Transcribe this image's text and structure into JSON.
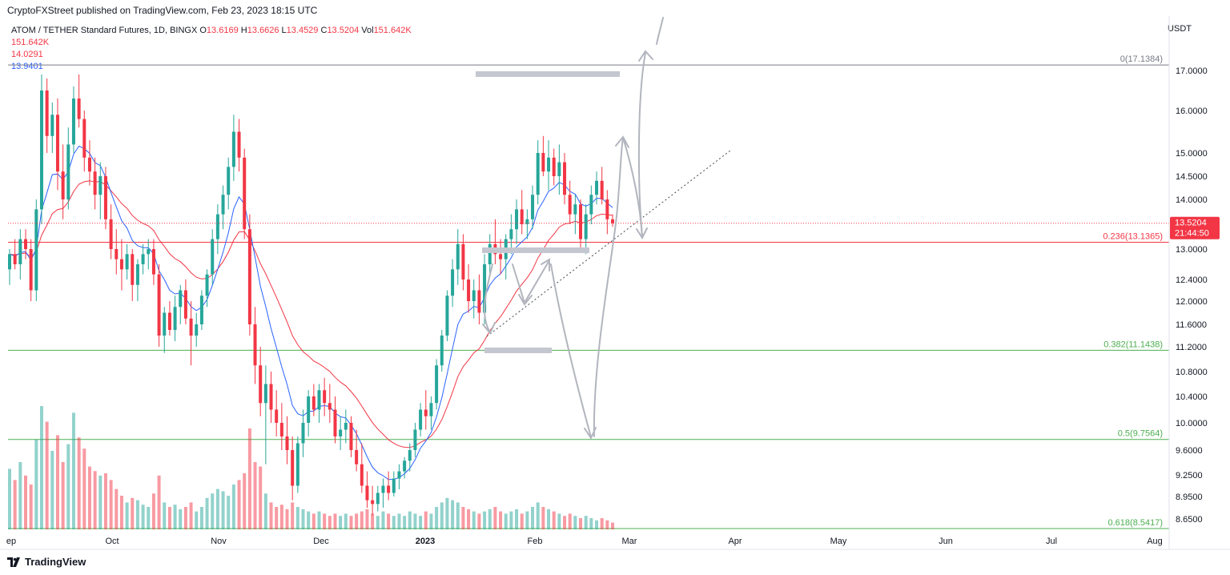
{
  "header": {
    "publisher": "CryptoFXStreet published on TradingView.com, Feb 23, 2023 18:15 UTC"
  },
  "legend": {
    "symbol": "ATOM / TETHER Standard Futures, 1D, BINGX",
    "o_label": "O",
    "o_value": "13.6169",
    "h_label": "H",
    "h_value": "13.6626",
    "l_label": "L",
    "l_value": "13.4529",
    "c_label": "C",
    "c_value": "13.5204",
    "vol_label": "Vol",
    "vol_value": "151.642K",
    "line1": "151.642K",
    "line2": "14.0291",
    "line3": "13.9401"
  },
  "unit": "USDT",
  "footer": {
    "brand": "TradingView"
  },
  "colors": {
    "up": "#26a69a",
    "down": "#f23645",
    "ema_fast": "#2962ff",
    "ema_slow": "#f23645",
    "fib_red": "#f23645",
    "fib_green": "#4caf50",
    "grey_line": "#787b86"
  },
  "chart_data": {
    "type": "candlestick",
    "ylim": [
      8.5,
      17.3
    ],
    "y_ticks": [
      "17.0000",
      "16.0000",
      "15.0000",
      "14.5000",
      "14.0000",
      "13.0000",
      "12.4000",
      "12.0000",
      "11.6000",
      "11.2000",
      "10.8000",
      "10.4000",
      "10.0000",
      "9.6000",
      "9.2500",
      "8.9500",
      "8.6500"
    ],
    "x_labels": [
      "ep",
      "Oct",
      "Nov",
      "Dec",
      "2023",
      "Feb",
      "Mar",
      "Apr",
      "May",
      "Jun",
      "Jul",
      "Aug"
    ],
    "last_price": {
      "value": 13.5204,
      "label": "13.5204",
      "countdown": "21:44:50"
    },
    "fib_levels": [
      {
        "label": "0(17.1384)",
        "value": 17.1384,
        "color": "#787b86"
      },
      {
        "label": "0.236(13.1365)",
        "value": 13.1365,
        "color": "#f23645"
      },
      {
        "label": "0.382(11.1438)",
        "value": 11.1438,
        "color": "#4caf50"
      },
      {
        "label": "0.5(9.7564)",
        "value": 9.7564,
        "color": "#4caf50"
      },
      {
        "label": "0.618(8.5417)",
        "value": 8.5417,
        "color": "#4caf50"
      }
    ],
    "candles": [
      [
        12.6,
        13.0,
        12.3,
        12.9
      ],
      [
        12.9,
        13.2,
        12.6,
        12.7
      ],
      [
        12.7,
        13.4,
        12.4,
        13.2
      ],
      [
        13.2,
        13.4,
        12.8,
        13.0
      ],
      [
        13.0,
        13.2,
        12.0,
        12.2
      ],
      [
        12.2,
        14.0,
        12.0,
        13.8
      ],
      [
        13.8,
        16.9,
        13.5,
        16.5
      ],
      [
        16.5,
        16.8,
        15.0,
        15.4
      ],
      [
        15.4,
        16.2,
        15.0,
        15.9
      ],
      [
        15.9,
        16.3,
        14.2,
        14.6
      ],
      [
        14.6,
        15.2,
        13.6,
        14.0
      ],
      [
        14.0,
        15.6,
        13.8,
        15.2
      ],
      [
        15.2,
        16.6,
        15.0,
        16.3
      ],
      [
        16.3,
        16.9,
        15.6,
        15.8
      ],
      [
        15.8,
        16.0,
        14.6,
        14.9
      ],
      [
        14.9,
        15.3,
        14.3,
        14.6
      ],
      [
        14.6,
        14.9,
        13.8,
        14.1
      ],
      [
        14.1,
        14.8,
        13.6,
        14.5
      ],
      [
        14.5,
        14.7,
        13.4,
        13.6
      ],
      [
        13.6,
        13.9,
        12.8,
        13.0
      ],
      [
        13.0,
        13.4,
        12.5,
        12.8
      ],
      [
        12.8,
        13.2,
        12.2,
        12.6
      ],
      [
        12.6,
        13.1,
        12.4,
        12.9
      ],
      [
        12.9,
        13.0,
        12.0,
        12.3
      ],
      [
        12.3,
        12.8,
        12.0,
        12.7
      ],
      [
        12.7,
        13.1,
        12.5,
        12.9
      ],
      [
        12.9,
        13.2,
        12.6,
        13.0
      ],
      [
        13.0,
        13.2,
        12.3,
        12.5
      ],
      [
        12.5,
        12.7,
        11.2,
        11.4
      ],
      [
        11.4,
        11.9,
        11.1,
        11.8
      ],
      [
        11.8,
        12.0,
        11.4,
        11.5
      ],
      [
        11.5,
        12.1,
        11.3,
        11.9
      ],
      [
        11.9,
        12.3,
        11.6,
        12.2
      ],
      [
        12.2,
        12.4,
        11.6,
        11.7
      ],
      [
        11.7,
        12.0,
        10.9,
        11.4
      ],
      [
        11.4,
        11.8,
        11.2,
        11.6
      ],
      [
        11.6,
        12.2,
        11.5,
        12.1
      ],
      [
        12.1,
        12.6,
        11.9,
        12.5
      ],
      [
        12.5,
        13.4,
        12.3,
        13.2
      ],
      [
        13.2,
        13.9,
        12.9,
        13.7
      ],
      [
        13.7,
        14.3,
        13.4,
        14.1
      ],
      [
        14.1,
        14.9,
        13.8,
        14.7
      ],
      [
        14.7,
        15.9,
        14.4,
        15.5
      ],
      [
        15.5,
        15.8,
        14.6,
        14.9
      ],
      [
        14.9,
        15.1,
        13.2,
        13.4
      ],
      [
        13.4,
        13.7,
        11.4,
        11.6
      ],
      [
        11.6,
        11.9,
        10.6,
        10.9
      ],
      [
        10.9,
        11.2,
        10.1,
        10.3
      ],
      [
        10.3,
        10.9,
        9.4,
        10.6
      ],
      [
        10.6,
        10.8,
        10.0,
        10.2
      ],
      [
        10.2,
        10.5,
        9.8,
        10.0
      ],
      [
        10.0,
        10.3,
        9.6,
        9.8
      ],
      [
        9.8,
        10.1,
        9.4,
        9.6
      ],
      [
        9.6,
        9.8,
        8.9,
        9.1
      ],
      [
        9.1,
        9.8,
        9.0,
        9.7
      ],
      [
        9.7,
        10.2,
        9.5,
        10.0
      ],
      [
        10.0,
        10.5,
        9.8,
        10.4
      ],
      [
        10.4,
        10.6,
        10.1,
        10.2
      ],
      [
        10.2,
        10.6,
        10.0,
        10.5
      ],
      [
        10.5,
        10.7,
        10.1,
        10.3
      ],
      [
        10.3,
        10.6,
        10.0,
        10.2
      ],
      [
        10.2,
        10.4,
        9.7,
        9.8
      ],
      [
        9.8,
        10.1,
        9.6,
        9.9
      ],
      [
        9.9,
        10.2,
        9.7,
        10.0
      ],
      [
        10.0,
        10.1,
        9.5,
        9.6
      ],
      [
        9.6,
        9.9,
        9.3,
        9.4
      ],
      [
        9.4,
        9.7,
        9.0,
        9.1
      ],
      [
        9.1,
        9.3,
        8.8,
        8.9
      ],
      [
        8.9,
        9.1,
        8.7,
        8.85
      ],
      [
        8.85,
        9.1,
        8.75,
        9.0
      ],
      [
        9.0,
        9.2,
        8.8,
        9.1
      ],
      [
        9.1,
        9.3,
        8.9,
        9.0
      ],
      [
        9.0,
        9.3,
        8.95,
        9.2
      ],
      [
        9.2,
        9.4,
        9.05,
        9.3
      ],
      [
        9.3,
        9.5,
        9.2,
        9.45
      ],
      [
        9.45,
        9.7,
        9.3,
        9.6
      ],
      [
        9.6,
        10.0,
        9.5,
        9.9
      ],
      [
        9.9,
        10.3,
        9.8,
        10.2
      ],
      [
        10.2,
        10.5,
        9.9,
        10.1
      ],
      [
        10.1,
        10.4,
        9.9,
        10.3
      ],
      [
        10.3,
        11.0,
        10.2,
        10.9
      ],
      [
        10.9,
        11.5,
        10.8,
        11.4
      ],
      [
        11.4,
        12.2,
        11.3,
        12.1
      ],
      [
        12.1,
        12.8,
        11.9,
        12.6
      ],
      [
        12.6,
        13.4,
        12.3,
        13.1
      ],
      [
        13.1,
        13.3,
        12.2,
        12.4
      ],
      [
        12.4,
        12.7,
        11.8,
        12.0
      ],
      [
        12.0,
        12.4,
        11.7,
        12.2
      ],
      [
        12.2,
        12.5,
        11.6,
        11.8
      ],
      [
        11.8,
        12.9,
        11.6,
        12.7
      ],
      [
        12.7,
        13.3,
        12.5,
        13.1
      ],
      [
        13.1,
        13.6,
        12.7,
        12.9
      ],
      [
        12.9,
        13.2,
        12.5,
        12.8
      ],
      [
        12.8,
        13.3,
        12.4,
        13.2
      ],
      [
        13.2,
        13.7,
        12.9,
        13.4
      ],
      [
        13.4,
        14.0,
        13.1,
        13.8
      ],
      [
        13.8,
        14.2,
        13.3,
        13.5
      ],
      [
        13.5,
        13.8,
        13.2,
        13.6
      ],
      [
        13.6,
        14.3,
        13.4,
        14.1
      ],
      [
        14.1,
        15.3,
        13.9,
        15.0
      ],
      [
        15.0,
        15.4,
        14.5,
        14.6
      ],
      [
        14.6,
        15.3,
        14.2,
        14.9
      ],
      [
        14.9,
        15.1,
        14.3,
        14.5
      ],
      [
        14.5,
        15.2,
        14.1,
        14.8
      ],
      [
        14.8,
        15.0,
        13.9,
        14.1
      ],
      [
        14.1,
        14.4,
        13.5,
        13.7
      ],
      [
        13.7,
        14.1,
        13.3,
        13.9
      ],
      [
        13.9,
        14.0,
        13.0,
        13.2
      ],
      [
        13.2,
        13.9,
        12.9,
        13.7
      ],
      [
        13.7,
        14.3,
        13.5,
        14.1
      ],
      [
        14.1,
        14.6,
        13.9,
        14.4
      ],
      [
        14.4,
        14.7,
        13.9,
        14.0
      ],
      [
        14.0,
        14.2,
        13.3,
        13.6
      ],
      [
        13.6,
        13.7,
        13.45,
        13.52
      ]
    ],
    "volumes": [
      0.27,
      0.22,
      0.3,
      0.24,
      0.2,
      0.4,
      0.55,
      0.48,
      0.35,
      0.42,
      0.3,
      0.38,
      0.52,
      0.41,
      0.36,
      0.28,
      0.26,
      0.24,
      0.25,
      0.22,
      0.18,
      0.15,
      0.12,
      0.14,
      0.13,
      0.11,
      0.1,
      0.16,
      0.24,
      0.12,
      0.1,
      0.11,
      0.09,
      0.1,
      0.12,
      0.08,
      0.1,
      0.14,
      0.16,
      0.18,
      0.17,
      0.15,
      0.2,
      0.22,
      0.25,
      0.45,
      0.3,
      0.28,
      0.16,
      0.12,
      0.1,
      0.11,
      0.09,
      0.12,
      0.1,
      0.09,
      0.08,
      0.07,
      0.08,
      0.07,
      0.06,
      0.07,
      0.06,
      0.07,
      0.06,
      0.07,
      0.08,
      0.09,
      0.07,
      0.06,
      0.08,
      0.07,
      0.06,
      0.07,
      0.06,
      0.08,
      0.07,
      0.06,
      0.08,
      0.07,
      0.1,
      0.12,
      0.14,
      0.13,
      0.12,
      0.1,
      0.09,
      0.08,
      0.07,
      0.08,
      0.09,
      0.1,
      0.08,
      0.07,
      0.08,
      0.09,
      0.07,
      0.08,
      0.1,
      0.12,
      0.1,
      0.09,
      0.08,
      0.07,
      0.06,
      0.07,
      0.06,
      0.05,
      0.06,
      0.05,
      0.04,
      0.05,
      0.04,
      0.03
    ]
  }
}
